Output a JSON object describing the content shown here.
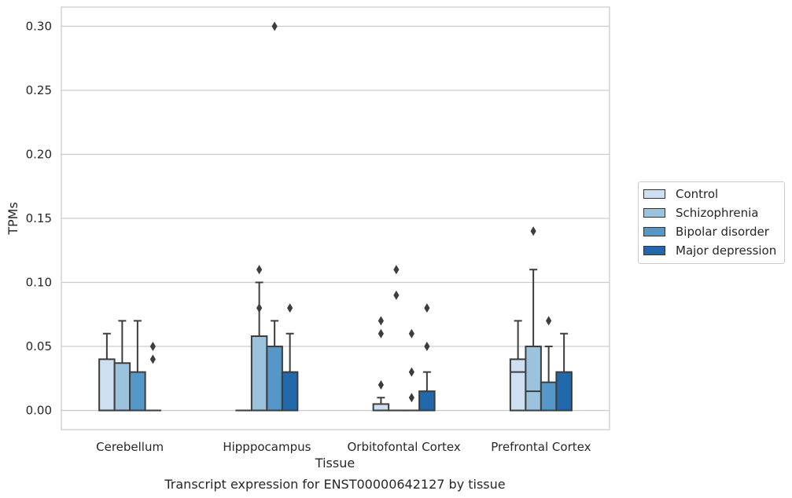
{
  "chart_data": {
    "type": "box",
    "title": "",
    "caption": "Transcript expression for ENST00000642127 by tissue",
    "xlabel": "Tissue",
    "ylabel": "TPMs",
    "ylim": [
      -0.015,
      0.315
    ],
    "yticks": [
      "0.00",
      "0.05",
      "0.10",
      "0.15",
      "0.20",
      "0.25",
      "0.30"
    ],
    "grid": "horizontal",
    "legend_position": "right",
    "categories": [
      "Cerebellum",
      "Hipppocampus",
      "Orbitofontal Cortex",
      "Prefrontal Cortex"
    ],
    "series": [
      {
        "name": "Control",
        "color": "#cddff0",
        "boxes": [
          {
            "q1": 0,
            "median": 0,
            "q3": 0.04,
            "whislo": 0,
            "whishi": 0.06,
            "fliers": []
          },
          {
            "q1": 0,
            "median": 0,
            "q3": 0,
            "whislo": 0,
            "whishi": 0,
            "fliers": []
          },
          {
            "q1": 0,
            "median": 0,
            "q3": 0.005,
            "whislo": 0,
            "whishi": 0.01,
            "fliers": [
              0.02,
              0.06,
              0.07
            ]
          },
          {
            "q1": 0,
            "median": 0.03,
            "q3": 0.04,
            "whislo": 0,
            "whishi": 0.07,
            "fliers": []
          }
        ]
      },
      {
        "name": "Schizophrenia",
        "color": "#9cc3de",
        "boxes": [
          {
            "q1": 0,
            "median": 0,
            "q3": 0.037,
            "whislo": 0,
            "whishi": 0.07,
            "fliers": []
          },
          {
            "q1": 0,
            "median": 0,
            "q3": 0.058,
            "whislo": 0,
            "whishi": 0.1,
            "fliers": [
              0.08,
              0.11
            ]
          },
          {
            "q1": 0,
            "median": 0,
            "q3": 0,
            "whislo": 0,
            "whishi": 0,
            "fliers": [
              0.09,
              0.11
            ]
          },
          {
            "q1": 0,
            "median": 0.015,
            "q3": 0.05,
            "whislo": 0,
            "whishi": 0.11,
            "fliers": [
              0.14
            ]
          }
        ]
      },
      {
        "name": "Bipolar disorder",
        "color": "#5597c6",
        "boxes": [
          {
            "q1": 0,
            "median": 0,
            "q3": 0.03,
            "whislo": 0,
            "whishi": 0.07,
            "fliers": []
          },
          {
            "q1": 0,
            "median": 0,
            "q3": 0.05,
            "whislo": 0,
            "whishi": 0.07,
            "fliers": [
              0.3
            ]
          },
          {
            "q1": 0,
            "median": 0,
            "q3": 0,
            "whislo": 0,
            "whishi": 0,
            "fliers": [
              0.01,
              0.03,
              0.06
            ]
          },
          {
            "q1": 0,
            "median": 0,
            "q3": 0.022,
            "whislo": 0,
            "whishi": 0.05,
            "fliers": [
              0.07
            ]
          }
        ]
      },
      {
        "name": "Major depression",
        "color": "#2169aa",
        "boxes": [
          {
            "q1": 0,
            "median": 0,
            "q3": 0,
            "whislo": 0,
            "whishi": 0,
            "fliers": [
              0.04,
              0.05
            ]
          },
          {
            "q1": 0,
            "median": 0,
            "q3": 0.03,
            "whislo": 0,
            "whishi": 0.06,
            "fliers": [
              0.08
            ]
          },
          {
            "q1": 0,
            "median": 0,
            "q3": 0.015,
            "whislo": 0,
            "whishi": 0.03,
            "fliers": [
              0.05,
              0.08
            ]
          },
          {
            "q1": 0,
            "median": 0,
            "q3": 0.03,
            "whislo": 0,
            "whishi": 0.06,
            "fliers": []
          }
        ]
      }
    ]
  }
}
